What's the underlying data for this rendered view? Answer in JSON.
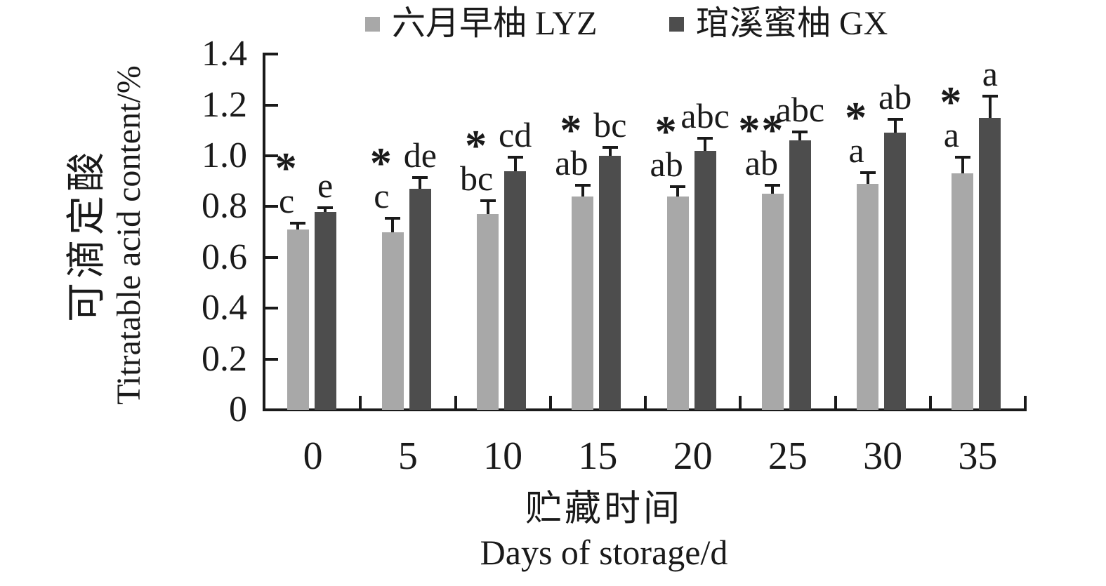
{
  "chart_data": {
    "type": "bar",
    "title": "",
    "categories": [
      "0",
      "5",
      "10",
      "15",
      "20",
      "25",
      "30",
      "35"
    ],
    "series": [
      {
        "name": "六月早柚 LYZ",
        "color": "#a8a8a8",
        "values": [
          0.71,
          0.7,
          0.77,
          0.84,
          0.84,
          0.85,
          0.89,
          0.93
        ],
        "errors": [
          0.03,
          0.06,
          0.06,
          0.05,
          0.045,
          0.04,
          0.05,
          0.07
        ],
        "sig_letters": [
          "c",
          "c",
          "bc",
          "ab",
          "ab",
          "ab",
          "a",
          "a"
        ]
      },
      {
        "name": "琯溪蜜柚 GX",
        "color": "#4d4d4d",
        "values": [
          0.78,
          0.87,
          0.94,
          1.0,
          1.02,
          1.06,
          1.09,
          1.15
        ],
        "errors": [
          0.02,
          0.05,
          0.06,
          0.04,
          0.055,
          0.04,
          0.06,
          0.09
        ],
        "sig_letters": [
          "e",
          "de",
          "cd",
          "bc",
          "abc",
          "abc",
          "ab",
          "a"
        ]
      }
    ],
    "significance_stars": [
      "*",
      "*",
      "*",
      "*",
      "*",
      "**",
      "*",
      "*"
    ],
    "ylabel_zh": "可滴定酸",
    "ylabel_en": "Titratable acid content/%",
    "xlabel_zh": "贮藏时间",
    "xlabel_en": "Days of storage/d",
    "ylim": [
      0,
      1.4
    ],
    "ytick_values": [
      0,
      0.2,
      0.4,
      0.6,
      0.8,
      1.0,
      1.2,
      1.4
    ],
    "ytick_labels": [
      "0",
      "0.2",
      "0.4",
      "0.6",
      "0.8",
      "1.0",
      "1.2",
      "1.4"
    ],
    "grid": false,
    "legend_position": "top",
    "axis_color": "#1a1a1a",
    "error_bars": "upper-whisker-with-cap"
  }
}
